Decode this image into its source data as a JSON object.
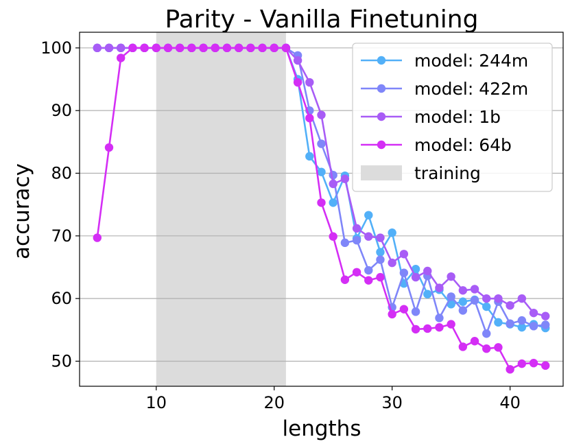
{
  "chart_data": {
    "type": "line",
    "title": "Parity - Vanilla Finetuning",
    "xlabel": "lengths",
    "ylabel": "accuracy",
    "xlim": [
      3.5,
      44.5
    ],
    "ylim": [
      46,
      102.5
    ],
    "xticks": [
      10,
      20,
      30,
      40
    ],
    "yticks": [
      50,
      60,
      70,
      80,
      90,
      100
    ],
    "grid": "horizontal",
    "legend_position": "top-right",
    "shaded_region": {
      "label": "training",
      "x": [
        10,
        21
      ],
      "color": "#dcdcdc"
    },
    "series": [
      {
        "name": "model: 244m",
        "color": "#52b0f8",
        "x": [
          5,
          6,
          7,
          8,
          9,
          10,
          11,
          12,
          13,
          14,
          15,
          16,
          17,
          18,
          19,
          20,
          21,
          22,
          23,
          24,
          25,
          26,
          27,
          28,
          29,
          30,
          31,
          32,
          33,
          34,
          35,
          36,
          37,
          38,
          39,
          40,
          41,
          42,
          43
        ],
        "values": [
          100,
          100,
          100,
          100,
          100,
          100,
          100,
          100,
          100,
          100,
          100,
          100,
          100,
          100,
          100,
          100,
          100,
          95,
          82.7,
          80.2,
          75.3,
          79.6,
          69.6,
          73.3,
          67.4,
          70.5,
          62.4,
          64.7,
          60.7,
          61.4,
          59.1,
          59.5,
          59.8,
          58.7,
          56.2,
          55.9,
          55.4,
          55.9,
          55.3
        ]
      },
      {
        "name": "model: 422m",
        "color": "#7f86f9",
        "x": [
          5,
          6,
          7,
          8,
          9,
          10,
          11,
          12,
          13,
          14,
          15,
          16,
          17,
          18,
          19,
          20,
          21,
          22,
          23,
          24,
          25,
          26,
          27,
          28,
          29,
          30,
          31,
          32,
          33,
          34,
          35,
          36,
          37,
          38,
          39,
          40,
          41,
          42,
          43
        ],
        "values": [
          100,
          100,
          100,
          100,
          100,
          100,
          100,
          100,
          100,
          100,
          100,
          100,
          100,
          100,
          100,
          100,
          100,
          98.8,
          90,
          84.7,
          79.7,
          68.9,
          69.3,
          64.5,
          66.2,
          58.6,
          64.1,
          57.9,
          63.6,
          56.9,
          60.3,
          58.1,
          59.7,
          54.4,
          59.5,
          56,
          56.5,
          55.6,
          55.8
        ]
      },
      {
        "name": "model: 1b",
        "color": "#a85cf6",
        "x": [
          5,
          6,
          7,
          8,
          9,
          10,
          11,
          12,
          13,
          14,
          15,
          16,
          17,
          18,
          19,
          20,
          21,
          22,
          23,
          24,
          25,
          26,
          27,
          28,
          29,
          30,
          31,
          32,
          33,
          34,
          35,
          36,
          37,
          38,
          39,
          40,
          41,
          42,
          43
        ],
        "values": [
          100,
          100,
          100,
          100,
          100,
          100,
          100,
          100,
          100,
          100,
          100,
          100,
          100,
          100,
          100,
          100,
          100,
          98,
          94.5,
          89.3,
          78.3,
          79.1,
          71.2,
          69.9,
          69.7,
          65.7,
          67.1,
          63.4,
          64.4,
          61.7,
          63.5,
          61.3,
          61.5,
          60,
          60,
          58.9,
          60,
          57.7,
          57.2
        ]
      },
      {
        "name": "model: 64b",
        "color": "#d42ef5",
        "x": [
          5,
          6,
          7,
          8,
          9,
          10,
          11,
          12,
          13,
          14,
          15,
          16,
          17,
          18,
          19,
          20,
          21,
          22,
          23,
          24,
          25,
          26,
          27,
          28,
          29,
          30,
          31,
          32,
          33,
          34,
          35,
          36,
          37,
          38,
          39,
          40,
          41,
          42,
          43
        ],
        "values": [
          69.7,
          84.1,
          98.4,
          100,
          100,
          100,
          100,
          100,
          100,
          100,
          100,
          100,
          100,
          100,
          100,
          100,
          100,
          94.5,
          88.8,
          75.3,
          69.9,
          63,
          64.2,
          62.9,
          63.4,
          57.5,
          58.3,
          55.1,
          55.2,
          55.4,
          55.9,
          52.3,
          53.2,
          52,
          52.2,
          48.7,
          49.6,
          49.7,
          49.3
        ]
      }
    ]
  }
}
